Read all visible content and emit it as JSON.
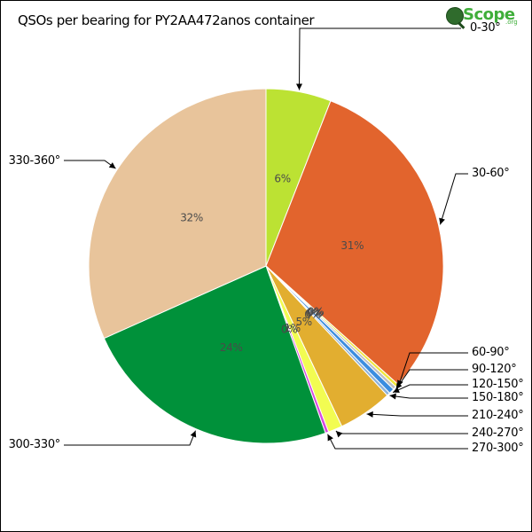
{
  "chart_data": {
    "type": "pie",
    "title": "QSOs per bearing for PY2AA472anos container",
    "slices": [
      {
        "label": "0-30°",
        "value": 6,
        "pct_label": "6%",
        "color": "#bce233"
      },
      {
        "label": "30-60°",
        "value": 31,
        "pct_label": "31%",
        "color": "#e2642d"
      },
      {
        "label": "60-90°",
        "value": 0.3,
        "pct_label": "0%",
        "color": "#f1e63a"
      },
      {
        "label": "90-120°",
        "value": 0.3,
        "pct_label": "0%",
        "color": "#bfbfbf"
      },
      {
        "label": "120-150°",
        "value": 0.5,
        "pct_label": "0%",
        "color": "#3b8de0"
      },
      {
        "label": "150-180°",
        "value": 0.3,
        "pct_label": "0%",
        "color": "#8fb3d9"
      },
      {
        "label": "210-240°",
        "value": 5,
        "pct_label": "5%",
        "color": "#e2ae30"
      },
      {
        "label": "240-270°",
        "value": 1.3,
        "pct_label": "1%",
        "color": "#f2fc52"
      },
      {
        "label": "270-300°",
        "value": 0.3,
        "pct_label": "0%",
        "color": "#d648e0"
      },
      {
        "label": "300-330°",
        "value": 24,
        "pct_label": "24%",
        "color": "#00913a"
      },
      {
        "label": "330-360°",
        "value": 32,
        "pct_label": "32%",
        "color": "#e8c49b"
      }
    ]
  },
  "logo": {
    "text": "Scope",
    "sub": ".org"
  }
}
